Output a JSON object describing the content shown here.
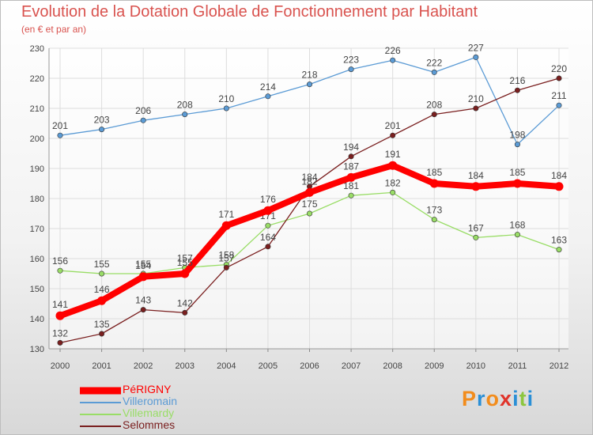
{
  "chart_data": {
    "type": "line",
    "title": "Evolution de la Dotation Globale de Fonctionnement par Habitant",
    "subtitle": "(en € et par an)",
    "x": [
      "2000",
      "2001",
      "2002",
      "2003",
      "2004",
      "2005",
      "2006",
      "2007",
      "2008",
      "2009",
      "2010",
      "2011",
      "2012"
    ],
    "ylim": [
      130,
      230
    ],
    "yticks": [
      130,
      140,
      150,
      160,
      170,
      180,
      190,
      200,
      210,
      220,
      230
    ],
    "grid": true,
    "legend_position": "bottom-left",
    "series": [
      {
        "name": "PéRIGNY",
        "color": "#ff0000",
        "values": [
          141,
          146,
          154,
          155,
          171,
          176,
          182,
          187,
          191,
          185,
          184,
          185,
          184
        ]
      },
      {
        "name": "Villeromain",
        "color": "#5b9bd5",
        "values": [
          201,
          203,
          206,
          208,
          210,
          214,
          218,
          223,
          226,
          222,
          227,
          198,
          211
        ]
      },
      {
        "name": "Villemardy",
        "color": "#99dd66",
        "values": [
          156,
          155,
          155,
          157,
          158,
          171,
          175,
          181,
          182,
          173,
          167,
          168,
          163
        ]
      },
      {
        "name": "Selommes",
        "color": "#7a1f1f",
        "values": [
          132,
          135,
          143,
          142,
          157,
          164,
          184,
          194,
          201,
          208,
          210,
          216,
          220
        ]
      }
    ]
  },
  "legend": [
    {
      "label": "PéRIGNY",
      "color": "#ff0000"
    },
    {
      "label": "Villeromain",
      "color": "#5b9bd5"
    },
    {
      "label": "Villemardy",
      "color": "#99dd66"
    },
    {
      "label": "Selommes",
      "color": "#7a1f1f"
    }
  ],
  "logo": {
    "text": "Proxiti",
    "letter_colors": [
      "#f28c1c",
      "#2a8fd6",
      "#f28c1c",
      "#e0342b",
      "#2a8fd6",
      "#8cc63f",
      "#2a8fd6"
    ]
  }
}
